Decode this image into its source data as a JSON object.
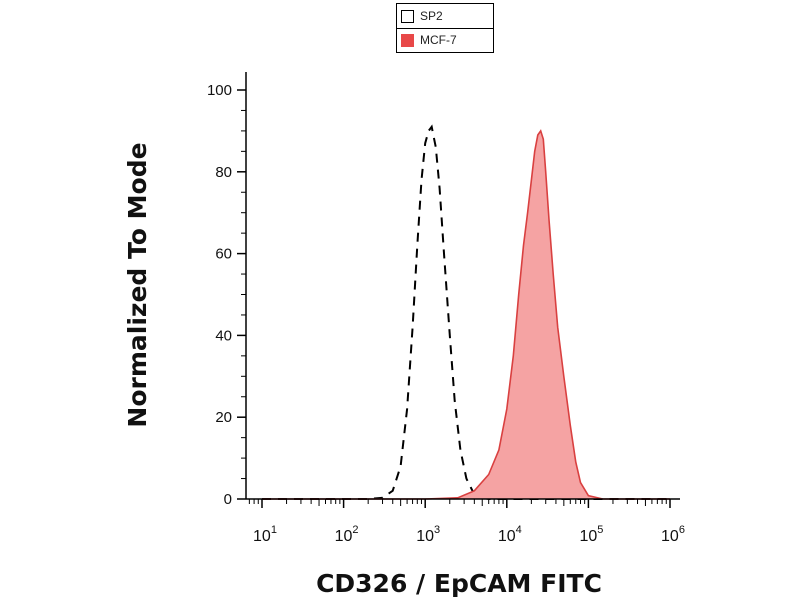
{
  "chart_data": {
    "type": "area",
    "xlabel": "CD326 / EpCAM FITC",
    "ylabel": "Normalized To Mode",
    "x_scale": "log",
    "xlim": [
      10,
      1000000
    ],
    "ylim": [
      0,
      100
    ],
    "x_tick_labels": [
      {
        "base": "10",
        "exp": "1",
        "value": 10
      },
      {
        "base": "10",
        "exp": "2",
        "value": 100
      },
      {
        "base": "10",
        "exp": "3",
        "value": 1000
      },
      {
        "base": "10",
        "exp": "4",
        "value": 10000
      },
      {
        "base": "10",
        "exp": "5",
        "value": 100000
      },
      {
        "base": "10",
        "exp": "6",
        "value": 1000000
      }
    ],
    "y_ticks": [
      0,
      20,
      40,
      60,
      80,
      100
    ],
    "y_tick_labels": [
      "0",
      "20",
      "40",
      "60",
      "80",
      "100"
    ],
    "grid": false,
    "legend_position": "top-center",
    "series": [
      {
        "name": "SP2",
        "style": "dashed-outline",
        "color": "#000000",
        "x": [
          10,
          100,
          200,
          300,
          400,
          500,
          600,
          700,
          800,
          900,
          1000,
          1100,
          1200,
          1350,
          1500,
          1700,
          2000,
          2300,
          2700,
          3200,
          3800,
          4500,
          6000,
          10000,
          100000,
          1000000
        ],
        "y": [
          0,
          0,
          0,
          0.3,
          2,
          8,
          22,
          42,
          62,
          78,
          87,
          90,
          91,
          86,
          76,
          60,
          40,
          24,
          12,
          5,
          2,
          0.5,
          0,
          0,
          0,
          0
        ]
      },
      {
        "name": "MCF-7",
        "style": "filled",
        "color": "#f5a3a3",
        "edge_color": "#d94040",
        "x": [
          10,
          100,
          1000,
          2500,
          4000,
          6000,
          8000,
          10000,
          12000,
          14000,
          16000,
          18000,
          20000,
          22000,
          24000,
          26000,
          28000,
          30000,
          33000,
          37000,
          42000,
          50000,
          60000,
          70000,
          80000,
          100000,
          150000,
          1000000
        ],
        "y": [
          0,
          0,
          0,
          0.3,
          2,
          6,
          12,
          22,
          35,
          50,
          62,
          70,
          78,
          85,
          89,
          90,
          88,
          80,
          68,
          55,
          42,
          30,
          18,
          9,
          4,
          0.8,
          0,
          0
        ]
      }
    ]
  }
}
